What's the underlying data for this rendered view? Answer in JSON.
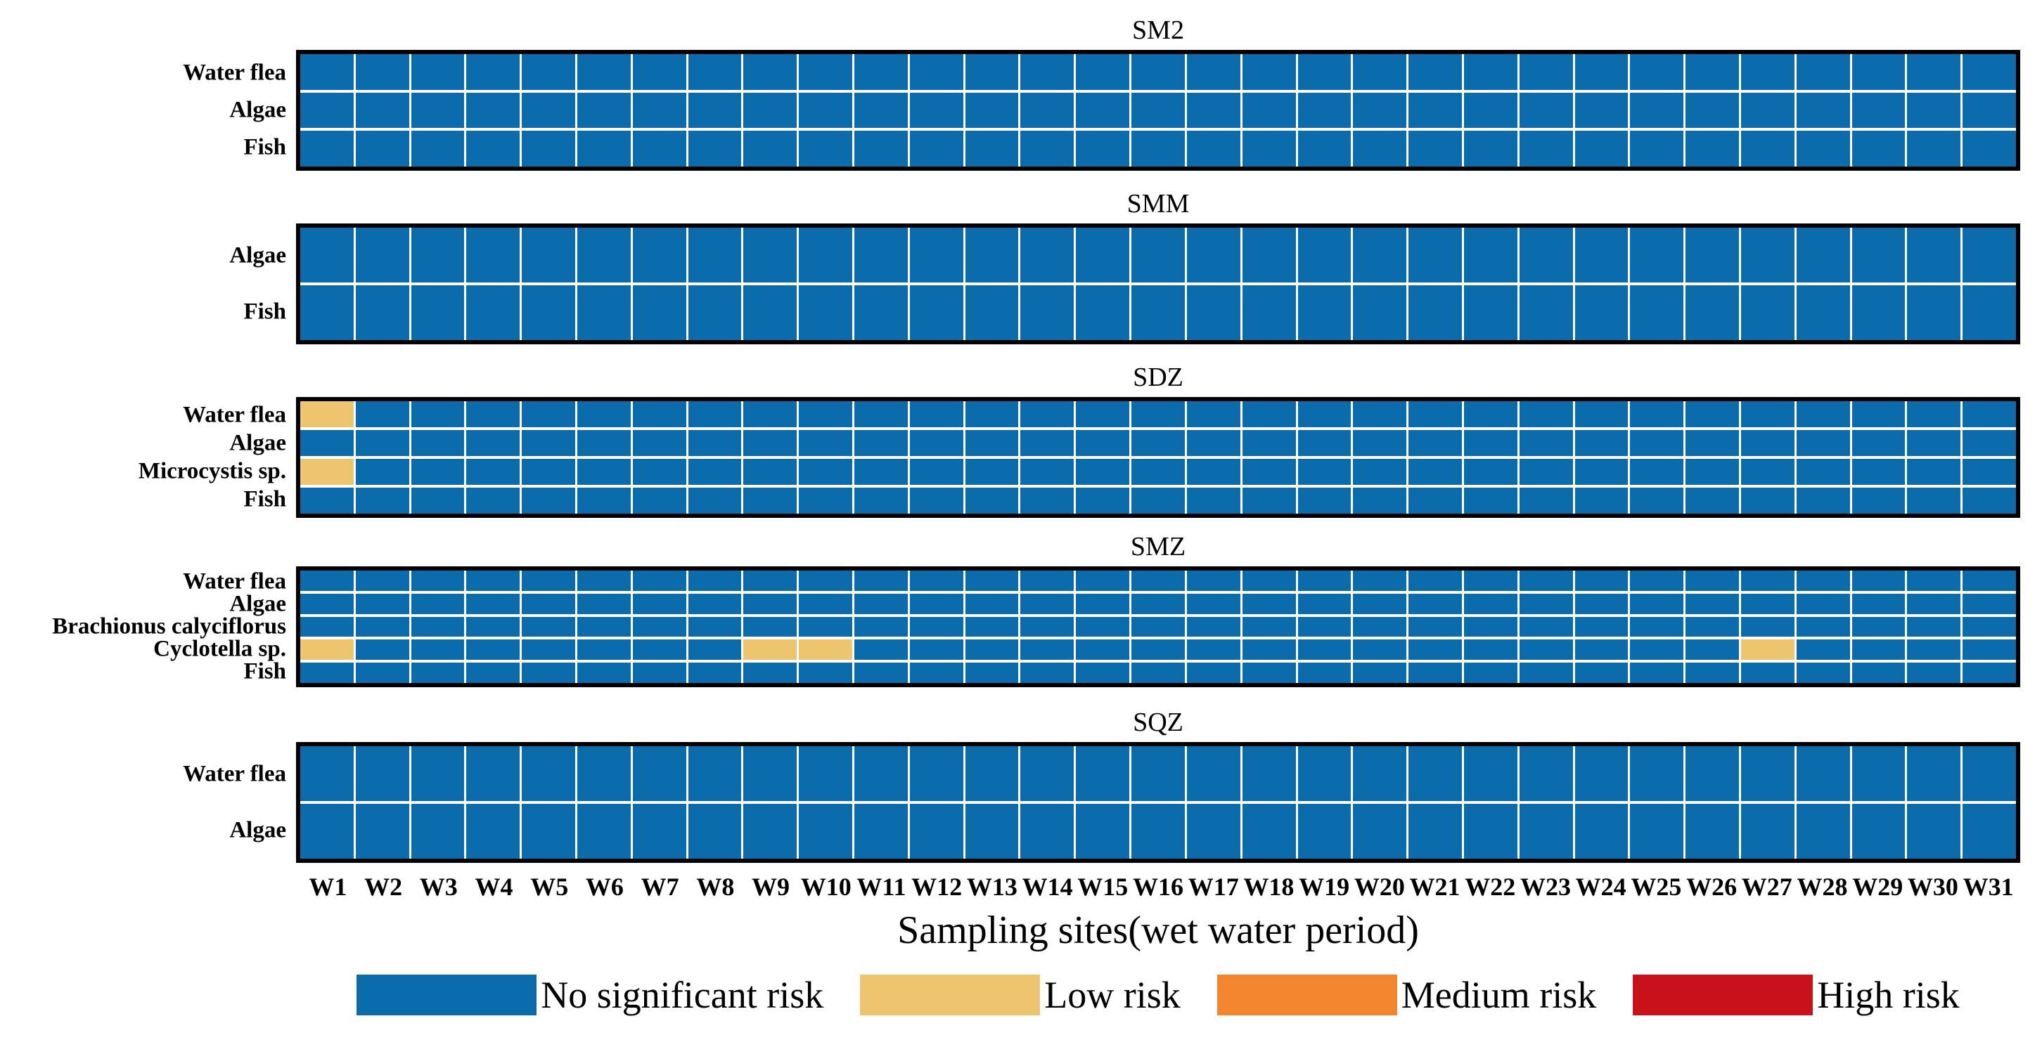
{
  "chart_data": {
    "type": "heatmap",
    "xlabel": "Sampling sites(wet water period)",
    "x": [
      "W1",
      "W2",
      "W3",
      "W4",
      "W5",
      "W6",
      "W7",
      "W8",
      "W9",
      "W10",
      "W11",
      "W12",
      "W13",
      "W14",
      "W15",
      "W16",
      "W17",
      "W18",
      "W19",
      "W20",
      "W21",
      "W22",
      "W23",
      "W24",
      "W25",
      "W26",
      "W27",
      "W28",
      "W29",
      "W30",
      "W31"
    ],
    "levels": [
      {
        "value": 0,
        "label": "No significant risk",
        "color": "#0B6BAB"
      },
      {
        "value": 1,
        "label": "Low risk",
        "color": "#ECC56E"
      },
      {
        "value": 2,
        "label": "Medium risk",
        "color": "#F1862F"
      },
      {
        "value": 3,
        "label": "High risk",
        "color": "#C8111A"
      }
    ],
    "grid": {
      "column_line_color": "#ffffff",
      "row_line_color": "#ffffff",
      "panel_border_color": "#000000"
    },
    "legend_position": "bottom",
    "panels": [
      {
        "title": "SM2",
        "rows": [
          {
            "label": "Water flea",
            "values": [
              0,
              0,
              0,
              0,
              0,
              0,
              0,
              0,
              0,
              0,
              0,
              0,
              0,
              0,
              0,
              0,
              0,
              0,
              0,
              0,
              0,
              0,
              0,
              0,
              0,
              0,
              0,
              0,
              0,
              0,
              0
            ]
          },
          {
            "label": "Algae",
            "values": [
              0,
              0,
              0,
              0,
              0,
              0,
              0,
              0,
              0,
              0,
              0,
              0,
              0,
              0,
              0,
              0,
              0,
              0,
              0,
              0,
              0,
              0,
              0,
              0,
              0,
              0,
              0,
              0,
              0,
              0,
              0
            ]
          },
          {
            "label": "Fish",
            "values": [
              0,
              0,
              0,
              0,
              0,
              0,
              0,
              0,
              0,
              0,
              0,
              0,
              0,
              0,
              0,
              0,
              0,
              0,
              0,
              0,
              0,
              0,
              0,
              0,
              0,
              0,
              0,
              0,
              0,
              0,
              0
            ]
          }
        ]
      },
      {
        "title": "SMM",
        "rows": [
          {
            "label": "Algae",
            "values": [
              0,
              0,
              0,
              0,
              0,
              0,
              0,
              0,
              0,
              0,
              0,
              0,
              0,
              0,
              0,
              0,
              0,
              0,
              0,
              0,
              0,
              0,
              0,
              0,
              0,
              0,
              0,
              0,
              0,
              0,
              0
            ]
          },
          {
            "label": "Fish",
            "values": [
              0,
              0,
              0,
              0,
              0,
              0,
              0,
              0,
              0,
              0,
              0,
              0,
              0,
              0,
              0,
              0,
              0,
              0,
              0,
              0,
              0,
              0,
              0,
              0,
              0,
              0,
              0,
              0,
              0,
              0,
              0
            ]
          }
        ]
      },
      {
        "title": "SDZ",
        "rows": [
          {
            "label": "Water flea",
            "values": [
              1,
              0,
              0,
              0,
              0,
              0,
              0,
              0,
              0,
              0,
              0,
              0,
              0,
              0,
              0,
              0,
              0,
              0,
              0,
              0,
              0,
              0,
              0,
              0,
              0,
              0,
              0,
              0,
              0,
              0,
              0
            ]
          },
          {
            "label": "Algae",
            "values": [
              0,
              0,
              0,
              0,
              0,
              0,
              0,
              0,
              0,
              0,
              0,
              0,
              0,
              0,
              0,
              0,
              0,
              0,
              0,
              0,
              0,
              0,
              0,
              0,
              0,
              0,
              0,
              0,
              0,
              0,
              0
            ]
          },
          {
            "label": "Microcystis sp.",
            "values": [
              1,
              0,
              0,
              0,
              0,
              0,
              0,
              0,
              0,
              0,
              0,
              0,
              0,
              0,
              0,
              0,
              0,
              0,
              0,
              0,
              0,
              0,
              0,
              0,
              0,
              0,
              0,
              0,
              0,
              0,
              0
            ]
          },
          {
            "label": "Fish",
            "values": [
              0,
              0,
              0,
              0,
              0,
              0,
              0,
              0,
              0,
              0,
              0,
              0,
              0,
              0,
              0,
              0,
              0,
              0,
              0,
              0,
              0,
              0,
              0,
              0,
              0,
              0,
              0,
              0,
              0,
              0,
              0
            ]
          }
        ]
      },
      {
        "title": "SMZ",
        "rows": [
          {
            "label": "Water flea",
            "values": [
              0,
              0,
              0,
              0,
              0,
              0,
              0,
              0,
              0,
              0,
              0,
              0,
              0,
              0,
              0,
              0,
              0,
              0,
              0,
              0,
              0,
              0,
              0,
              0,
              0,
              0,
              0,
              0,
              0,
              0,
              0
            ]
          },
          {
            "label": "Algae",
            "values": [
              0,
              0,
              0,
              0,
              0,
              0,
              0,
              0,
              0,
              0,
              0,
              0,
              0,
              0,
              0,
              0,
              0,
              0,
              0,
              0,
              0,
              0,
              0,
              0,
              0,
              0,
              0,
              0,
              0,
              0,
              0
            ]
          },
          {
            "label": "Brachionus calyciflorus",
            "values": [
              0,
              0,
              0,
              0,
              0,
              0,
              0,
              0,
              0,
              0,
              0,
              0,
              0,
              0,
              0,
              0,
              0,
              0,
              0,
              0,
              0,
              0,
              0,
              0,
              0,
              0,
              0,
              0,
              0,
              0,
              0
            ]
          },
          {
            "label": "Cyclotella sp.",
            "values": [
              1,
              0,
              0,
              0,
              0,
              0,
              0,
              0,
              1,
              1,
              0,
              0,
              0,
              0,
              0,
              0,
              0,
              0,
              0,
              0,
              0,
              0,
              0,
              0,
              0,
              0,
              1,
              0,
              0,
              0,
              0
            ]
          },
          {
            "label": "Fish",
            "values": [
              0,
              0,
              0,
              0,
              0,
              0,
              0,
              0,
              0,
              0,
              0,
              0,
              0,
              0,
              0,
              0,
              0,
              0,
              0,
              0,
              0,
              0,
              0,
              0,
              0,
              0,
              0,
              0,
              0,
              0,
              0
            ]
          }
        ]
      },
      {
        "title": "SQZ",
        "rows": [
          {
            "label": "Water flea",
            "values": [
              0,
              0,
              0,
              0,
              0,
              0,
              0,
              0,
              0,
              0,
              0,
              0,
              0,
              0,
              0,
              0,
              0,
              0,
              0,
              0,
              0,
              0,
              0,
              0,
              0,
              0,
              0,
              0,
              0,
              0,
              0
            ]
          },
          {
            "label": "Algae",
            "values": [
              0,
              0,
              0,
              0,
              0,
              0,
              0,
              0,
              0,
              0,
              0,
              0,
              0,
              0,
              0,
              0,
              0,
              0,
              0,
              0,
              0,
              0,
              0,
              0,
              0,
              0,
              0,
              0,
              0,
              0,
              0
            ]
          }
        ]
      }
    ],
    "legend": [
      "No significant risk",
      "Low risk",
      "Medium risk",
      "High risk"
    ]
  }
}
